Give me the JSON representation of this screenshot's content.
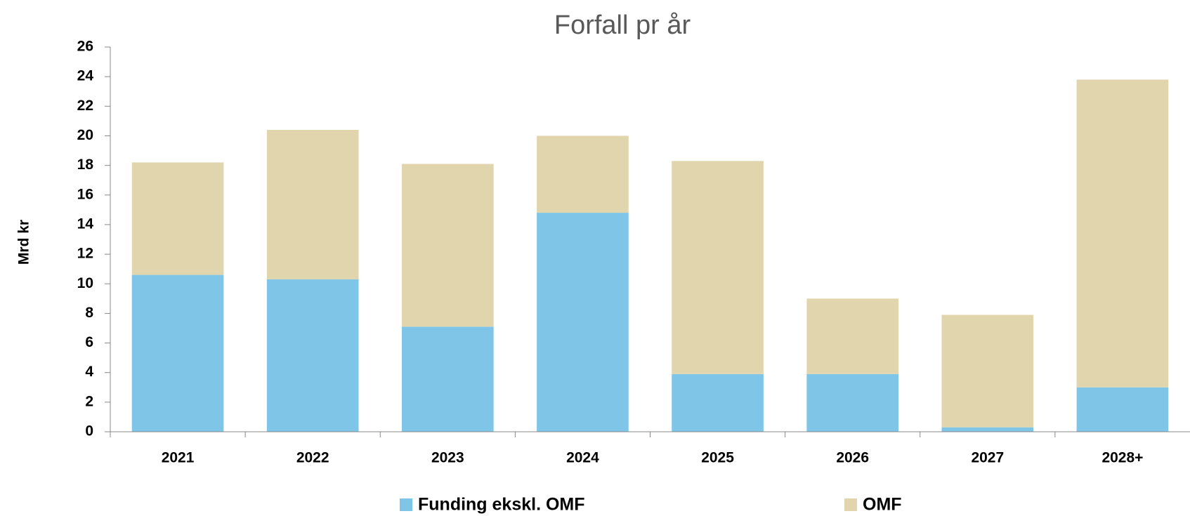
{
  "chart_data": {
    "type": "stacked_bar",
    "title": "Forfall pr år",
    "y_label": "Mrd kr",
    "categories": [
      "2021",
      "2022",
      "2023",
      "2024",
      "2025",
      "2026",
      "2027",
      "2028+"
    ],
    "series": [
      {
        "name": "Funding ekskl. OMF",
        "color": "#7fc5e8",
        "values": [
          10.6,
          10.3,
          7.1,
          14.8,
          3.9,
          3.9,
          0.3,
          3.0
        ]
      },
      {
        "name": "OMF",
        "color": "#e1d5ae",
        "values": [
          7.6,
          10.1,
          11.0,
          5.2,
          14.4,
          5.1,
          7.6,
          20.8
        ]
      }
    ],
    "ylim": [
      0,
      26
    ],
    "yticks": [
      0,
      2,
      4,
      6,
      8,
      10,
      12,
      14,
      16,
      18,
      20,
      22,
      24,
      26
    ],
    "grid": false,
    "legend": "bottom"
  }
}
